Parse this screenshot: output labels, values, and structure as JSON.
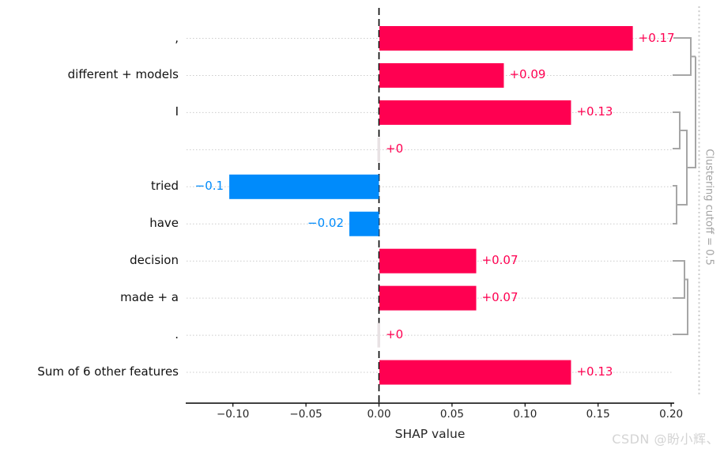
{
  "chart_data": {
    "type": "bar",
    "title": "",
    "xlabel": "SHAP value",
    "xlim": [
      -0.133,
      0.202
    ],
    "grid": "dotted-horizontal",
    "legend": null,
    "x_ticks": {
      "values": [
        -0.1,
        -0.05,
        0.0,
        0.05,
        0.1,
        0.15,
        0.2
      ],
      "labels": [
        "−0.10",
        "−0.05",
        "0.00",
        "0.05",
        "0.10",
        "0.15",
        "0.20"
      ]
    },
    "features": [
      {
        "label": ",",
        "value": 0.1735,
        "display": "+0.17"
      },
      {
        "label": "different + models",
        "value": 0.0852,
        "display": "+0.09"
      },
      {
        "label": "I",
        "value": 0.1312,
        "display": "+0.13"
      },
      {
        "label": "",
        "value": 0.0,
        "display": "+0"
      },
      {
        "label": "tried",
        "value": -0.1025,
        "display": "−0.1"
      },
      {
        "label": "have",
        "value": -0.0203,
        "display": "−0.02"
      },
      {
        "label": "decision",
        "value": 0.0663,
        "display": "+0.07"
      },
      {
        "label": "made + a",
        "value": 0.0663,
        "display": "+0.07"
      },
      {
        "label": ".",
        "value": 0.0,
        "display": "+0"
      },
      {
        "label": "Sum of 6 other features",
        "value": 0.1312,
        "display": "+0.13"
      }
    ],
    "clustering": {
      "cutoff": 0.5,
      "merges": [
        [
          0,
          1
        ],
        [
          2,
          3
        ],
        [
          4,
          5
        ],
        [
          "2+3",
          "4+5"
        ],
        [
          "0+1",
          "2+3+4+5"
        ],
        [
          6,
          7
        ],
        [
          "6+7",
          8
        ]
      ]
    }
  },
  "clustering": {
    "cutoff_label": "Clustering cutoff = 0.5"
  },
  "watermark": {
    "text": "CSDN @盼小辉、"
  },
  "colors": {
    "positive": "#ff0051",
    "negative": "#008bfb",
    "zero_bar": "#e8e2e4",
    "gridline": "#cccccc",
    "zero_line": "#000000",
    "dendrogram": "#a6a6a6",
    "cutoff_line": "#c9c9c9",
    "axis": "#000000",
    "tick_text": "#262626"
  }
}
